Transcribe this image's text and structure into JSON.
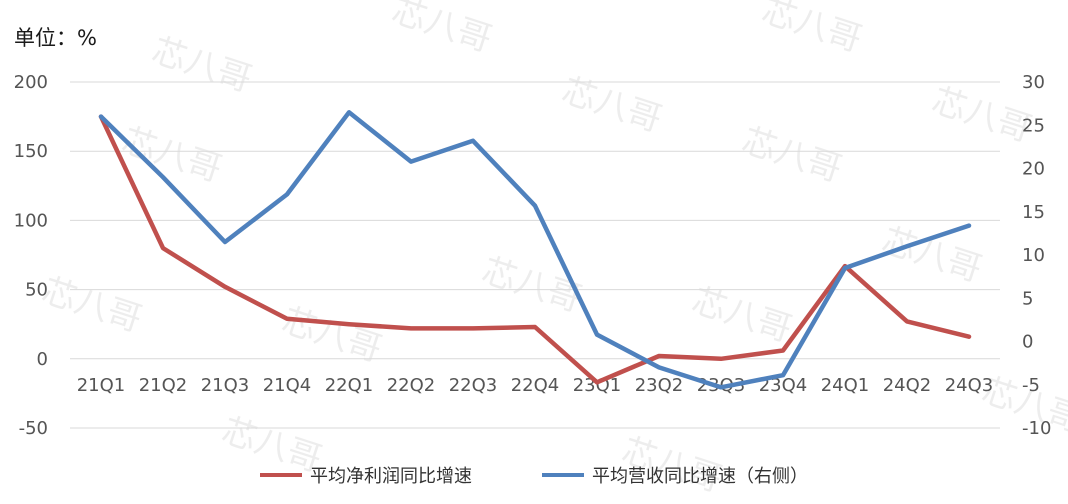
{
  "chart_data": {
    "type": "line",
    "unit_label": "单位：%",
    "categories": [
      "21Q1",
      "21Q2",
      "21Q3",
      "21Q4",
      "22Q1",
      "22Q2",
      "22Q3",
      "22Q4",
      "23Q1",
      "23Q2",
      "23Q3",
      "23Q4",
      "24Q1",
      "24Q2",
      "24Q3"
    ],
    "left_axis": {
      "min": -50,
      "max": 200,
      "ticks": [
        -50,
        0,
        50,
        100,
        150,
        200
      ]
    },
    "right_axis": {
      "min": -10,
      "max": 30,
      "ticks": [
        -10,
        -5,
        0,
        5,
        10,
        15,
        20,
        25,
        30
      ]
    },
    "series": [
      {
        "name": "平均净利润同比增速",
        "axis": "left",
        "color": "#c0504d",
        "values": [
          175,
          80,
          52,
          29,
          25,
          22,
          22,
          23,
          -17,
          2,
          0,
          6,
          67,
          27,
          16
        ]
      },
      {
        "name": "平均营收同比增速（右侧）",
        "axis": "right",
        "color": "#4f81bd",
        "values": [
          26,
          19,
          11.5,
          17,
          26.5,
          20.8,
          23.2,
          15.7,
          0.8,
          -3,
          -5.3,
          -3.9,
          8.5,
          11,
          13.4
        ]
      }
    ],
    "grid": true,
    "legend_position": "bottom",
    "watermark": "芯八哥"
  }
}
